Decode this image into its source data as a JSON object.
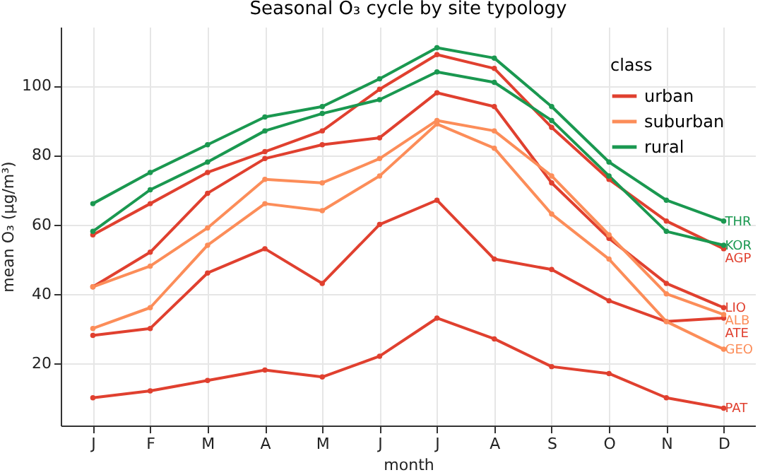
{
  "chart_data": {
    "type": "line",
    "title": "Seasonal O₃ cycle by site typology",
    "xlabel": "month",
    "ylabel": "mean O₃ (μg/m³)",
    "legend_title": "class",
    "categories": [
      "J",
      "F",
      "M",
      "A",
      "M",
      "J",
      "J",
      "A",
      "S",
      "O",
      "N",
      "D"
    ],
    "series": [
      {
        "name": "urban",
        "color": "#e0402f",
        "values": [
          57,
          66,
          75,
          81,
          87,
          99,
          109,
          105,
          88,
          73,
          61,
          53
        ]
      },
      {
        "color": "#e0402f",
        "values": [
          42,
          52,
          69,
          79,
          83,
          85,
          98,
          94,
          72,
          56,
          43,
          36
        ]
      },
      {
        "color": "#e0402f",
        "values": [
          28,
          30,
          46,
          53,
          43,
          60,
          67,
          50,
          47,
          38,
          32,
          33
        ]
      },
      {
        "color": "#e0402f",
        "values": [
          10,
          12,
          15,
          18,
          16,
          22,
          33,
          27,
          19,
          17,
          10,
          7
        ]
      },
      {
        "name": "suburban",
        "color": "#fc8d59",
        "values": [
          42,
          48,
          59,
          73,
          72,
          79,
          90,
          87,
          74,
          57,
          40,
          34
        ]
      },
      {
        "color": "#fc8d59",
        "values": [
          30,
          36,
          54,
          66,
          64,
          74,
          89,
          82,
          63,
          50,
          32,
          24
        ]
      },
      {
        "name": "rural",
        "color": "#1a9850",
        "values": [
          66,
          75,
          83,
          91,
          94,
          102,
          111,
          108,
          94,
          78,
          67,
          61
        ]
      },
      {
        "color": "#1a9850",
        "values": [
          58,
          70,
          78,
          87,
          92,
          96,
          104,
          101,
          90,
          74,
          58,
          54
        ]
      }
    ],
    "annotations": [
      {
        "text": "THR",
        "x": "D",
        "y": 61
      },
      {
        "text": "KOR",
        "x": "D",
        "y": 54
      },
      {
        "text": "AGP",
        "x": "D",
        "y": 53
      },
      {
        "text": "LIO",
        "x": "D",
        "y": 36
      },
      {
        "text": "ALB",
        "x": "D",
        "y": 34
      },
      {
        "text": "ATE",
        "x": "D",
        "y": 33
      },
      {
        "text": "GEO",
        "x": "D",
        "y": 24
      },
      {
        "text": "PAT",
        "x": "D",
        "y": 7
      }
    ],
    "ylim": [
      2,
      117
    ],
    "yticks": [
      20,
      40,
      60,
      80,
      100
    ],
    "grid": true,
    "legend": "top right",
    "marker": "circle",
    "line_style": "solid"
  }
}
